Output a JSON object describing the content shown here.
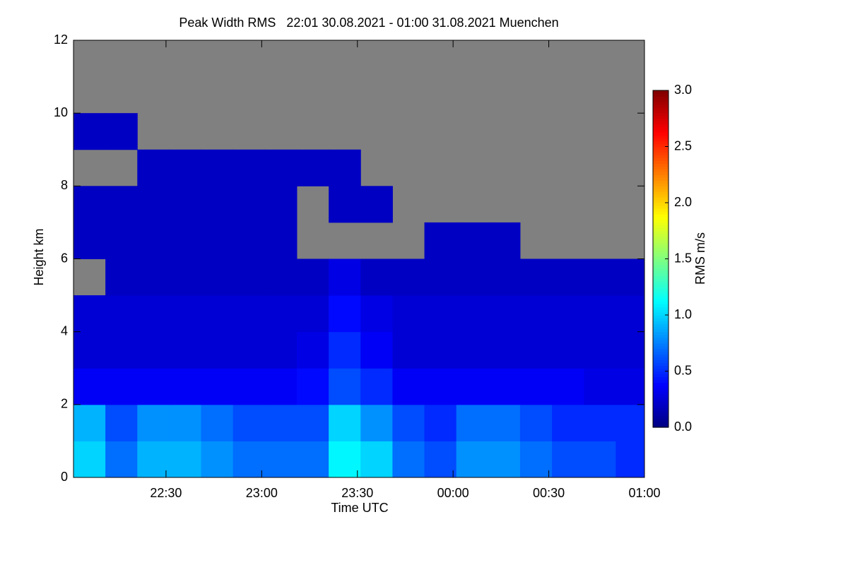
{
  "chart_data": {
    "type": "heatmap",
    "title": "Peak Width RMS   22:01 30.08.2021 - 01:00 31.08.2021 Muenchen",
    "xlabel": "Time UTC",
    "ylabel": "Height km",
    "colorbar_label": "RMS m/s",
    "xlim": [
      "22:01",
      "01:00"
    ],
    "xticks": [
      "22:30",
      "23:00",
      "23:30",
      "00:00",
      "00:30",
      "01:00"
    ],
    "ylim": [
      0,
      12
    ],
    "yticks": [
      0,
      2,
      4,
      6,
      8,
      10,
      12
    ],
    "zlim": [
      0,
      3
    ],
    "zticks": [
      {
        "value": 0,
        "label": "0.0"
      },
      0.5,
      {
        "value": 1,
        "label": "1.0"
      },
      1.5,
      {
        "value": 2,
        "label": "2.0"
      },
      2.5,
      {
        "value": 3,
        "label": "3.0"
      }
    ],
    "colormap": "jet",
    "background": "#808080",
    "x": [
      "22:01",
      "22:11",
      "22:21",
      "22:31",
      "22:41",
      "22:51",
      "23:01",
      "23:11",
      "23:21",
      "23:31",
      "23:41",
      "23:51",
      "00:01",
      "00:11",
      "00:21",
      "00:31",
      "00:41",
      "00:51"
    ],
    "y": [
      0,
      1,
      2,
      3,
      4,
      5,
      6,
      7,
      8,
      9,
      10,
      11
    ],
    "z": [
      [
        1.0,
        0.7,
        0.9,
        0.9,
        0.8,
        0.7,
        0.7,
        0.7,
        1.1,
        1.0,
        0.7,
        0.6,
        0.8,
        0.8,
        0.7,
        0.6,
        0.6,
        0.5
      ],
      [
        0.9,
        0.6,
        0.8,
        0.8,
        0.7,
        0.6,
        0.6,
        0.6,
        1.0,
        0.8,
        0.6,
        0.5,
        0.7,
        0.7,
        0.6,
        0.5,
        0.5,
        0.5
      ],
      [
        0.35,
        0.35,
        0.35,
        0.35,
        0.35,
        0.35,
        0.35,
        0.4,
        0.6,
        0.5,
        0.35,
        0.35,
        0.35,
        0.35,
        0.35,
        0.35,
        0.3,
        0.3
      ],
      [
        0.25,
        0.25,
        0.25,
        0.25,
        0.25,
        0.25,
        0.25,
        0.3,
        0.5,
        0.35,
        0.25,
        0.25,
        0.25,
        0.25,
        0.25,
        0.25,
        0.25,
        0.25
      ],
      [
        0.25,
        0.25,
        0.25,
        0.25,
        0.25,
        0.25,
        0.25,
        0.25,
        0.4,
        0.3,
        0.25,
        0.25,
        0.25,
        0.25,
        0.25,
        0.25,
        0.25,
        0.25
      ],
      [
        null,
        0.2,
        0.2,
        0.2,
        0.2,
        0.2,
        0.2,
        0.2,
        0.3,
        0.2,
        0.2,
        0.2,
        0.2,
        0.2,
        0.2,
        0.2,
        0.2,
        0.2
      ],
      [
        0.2,
        0.2,
        0.2,
        0.2,
        0.2,
        0.2,
        0.2,
        null,
        null,
        null,
        null,
        0.2,
        0.2,
        0.2,
        null,
        null,
        null,
        null
      ],
      [
        0.2,
        0.2,
        0.2,
        0.2,
        0.2,
        0.2,
        0.2,
        null,
        0.2,
        0.2,
        null,
        null,
        null,
        null,
        null,
        null,
        null,
        null
      ],
      [
        null,
        null,
        0.2,
        0.2,
        0.2,
        0.2,
        0.2,
        0.2,
        0.2,
        null,
        null,
        null,
        null,
        null,
        null,
        null,
        null,
        null
      ],
      [
        0.2,
        0.2,
        null,
        null,
        null,
        null,
        null,
        null,
        null,
        null,
        null,
        null,
        null,
        null,
        null,
        null,
        null,
        null
      ],
      [
        null,
        null,
        null,
        null,
        null,
        null,
        null,
        null,
        null,
        null,
        null,
        null,
        null,
        null,
        null,
        null,
        null,
        null
      ],
      [
        null,
        null,
        null,
        null,
        null,
        null,
        null,
        null,
        null,
        null,
        null,
        null,
        null,
        null,
        null,
        null,
        null,
        null
      ]
    ]
  }
}
